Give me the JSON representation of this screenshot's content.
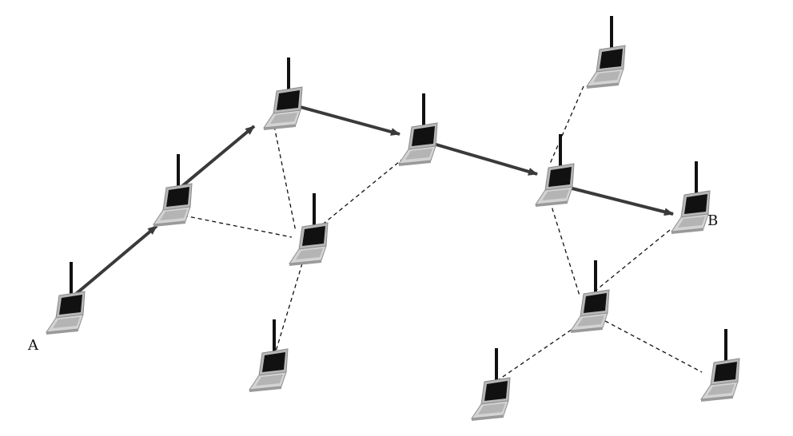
{
  "labels": {
    "source": "A",
    "destination": "B"
  },
  "colors": {
    "route_arrow": "#3a3a3a",
    "link_dashed": "#111111",
    "laptop_screen": "#111111",
    "laptop_body": "#c9c9c9",
    "antenna": "#111111"
  },
  "icon": "laptop-with-antenna-icon"
}
